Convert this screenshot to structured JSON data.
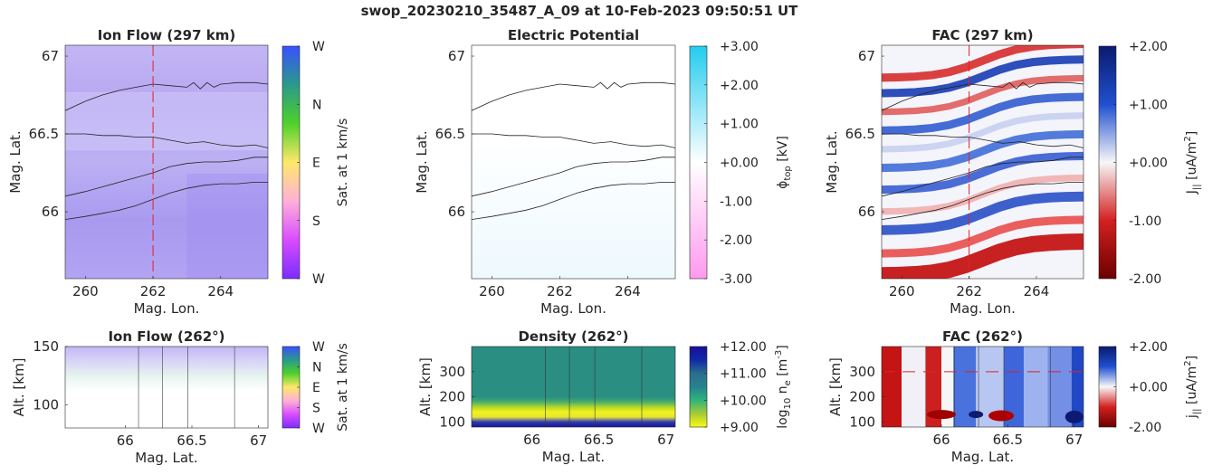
{
  "figure_title": "swop_20230210_35487_A_09 at 10-Feb-2023 09:50:51 UT",
  "chart_data": [
    {
      "id": "ion_flow_map",
      "type": "heatmap",
      "title": "Ion Flow (297 km)",
      "xlabel": "Mag. Lon.",
      "ylabel": "Mag. Lat.",
      "xlim": [
        259.4,
        265.4
      ],
      "ylim": [
        65.57,
        67.07
      ],
      "xticks": [
        260,
        262,
        264
      ],
      "xtick_labels": [
        "260",
        "262",
        "264"
      ],
      "yticks": [
        66,
        66.5,
        67
      ],
      "ytick_labels": [
        "66",
        "66.5",
        "67"
      ],
      "marker_line_x": 262,
      "colorbar": {
        "label": "Sat. at 1 km/s",
        "ticks": [
          "W",
          "N",
          "E",
          "S",
          "W"
        ],
        "colors": [
          "#7a2cff",
          "#d94cff",
          "#ffb0d8",
          "#ffe86a",
          "#4fd12a",
          "#2a9a8a",
          "#3a50ff"
        ]
      },
      "field_color": "#b9a7f2",
      "arcs": [
        {
          "x": [
            259.4,
            260.0,
            260.5,
            261.0,
            261.5,
            262.0,
            262.5,
            263.0,
            263.2,
            263.4,
            263.6,
            263.8,
            264.0,
            264.5,
            265.0,
            265.4
          ],
          "y": [
            66.65,
            66.71,
            66.75,
            66.78,
            66.8,
            66.82,
            66.81,
            66.8,
            66.83,
            66.79,
            66.83,
            66.8,
            66.82,
            66.83,
            66.83,
            66.82
          ]
        },
        {
          "x": [
            259.4,
            260.0,
            260.5,
            261.0,
            261.5,
            262.0,
            262.5,
            263.0,
            263.5,
            264.0,
            264.5,
            265.0,
            265.4
          ],
          "y": [
            66.5,
            66.5,
            66.49,
            66.49,
            66.48,
            66.48,
            66.46,
            66.44,
            66.45,
            66.43,
            66.42,
            66.43,
            66.41
          ]
        },
        {
          "x": [
            259.4,
            260.0,
            260.5,
            261.0,
            261.5,
            262.0,
            262.5,
            263.0,
            263.5,
            264.0,
            264.5,
            265.0,
            265.4
          ],
          "y": [
            66.1,
            66.13,
            66.16,
            66.19,
            66.22,
            66.25,
            66.29,
            66.31,
            66.32,
            66.32,
            66.33,
            66.35,
            66.35
          ]
        },
        {
          "x": [
            259.4,
            260.0,
            260.5,
            261.0,
            261.5,
            262.0,
            262.5,
            263.0,
            263.5,
            264.0,
            264.5,
            265.0,
            265.4
          ],
          "y": [
            65.95,
            65.97,
            65.99,
            66.01,
            66.04,
            66.08,
            66.12,
            66.15,
            66.17,
            66.18,
            66.18,
            66.19,
            66.19
          ]
        }
      ]
    },
    {
      "id": "potential_map",
      "type": "heatmap",
      "title": "Electric Potential",
      "xlabel": "Mag. Lon.",
      "ylabel": "Mag. Lat.",
      "xlim": [
        259.4,
        265.4
      ],
      "ylim": [
        65.57,
        67.07
      ],
      "xticks": [
        260,
        262,
        264
      ],
      "xtick_labels": [
        "260",
        "262",
        "264"
      ],
      "yticks": [
        66,
        66.5,
        67
      ],
      "ytick_labels": [
        "66",
        "66.5",
        "67"
      ],
      "colorbar": {
        "label": "ϕ_top [kV]",
        "label_main": "ϕ",
        "label_sub": "top",
        "label_rest": " [kV]",
        "ticks": [
          "+3.00",
          "+2.00",
          "+1.00",
          "+0.00",
          "-1.00",
          "-2.00",
          "-3.00"
        ],
        "colors": [
          "#ff99ee",
          "#ffffff",
          "#22ccee"
        ]
      },
      "field_color": "#f3fbff"
    },
    {
      "id": "fac_map",
      "type": "heatmap",
      "title": "FAC (297 km)",
      "xlabel": "Mag. Lon.",
      "ylabel": "Mag. Lat.",
      "xlim": [
        259.4,
        265.4
      ],
      "ylim": [
        65.57,
        67.07
      ],
      "xticks": [
        260,
        262,
        264
      ],
      "xtick_labels": [
        "260",
        "262",
        "264"
      ],
      "yticks": [
        66,
        66.5,
        67
      ],
      "ytick_labels": [
        "66",
        "66.5",
        "67"
      ],
      "marker_line_x": 262,
      "colorbar": {
        "label": "J_|| [uA/m^2]",
        "label_main": "J",
        "label_sub": "||",
        "label_rest": " [uA/m",
        "label_sup": "2",
        "label_end": "]",
        "ticks": [
          "+2.00",
          "+1.00",
          "+0.00",
          "-1.00",
          "-2.00"
        ],
        "colors": [
          "#6b0000",
          "#d42020",
          "#f7f7f7",
          "#2050d0",
          "#0a1a6e"
        ]
      }
    },
    {
      "id": "ion_flow_profile",
      "type": "heatmap",
      "title": "Ion Flow (262°)",
      "xlabel": "Mag. Lat.",
      "ylabel": "Alt. [km]",
      "xlim": [
        65.55,
        67.07
      ],
      "ylim": [
        80,
        150
      ],
      "xticks": [
        66,
        66.5,
        67
      ],
      "xtick_labels": [
        "66",
        "66.5",
        "67"
      ],
      "yticks": [
        100,
        150
      ],
      "ytick_labels": [
        "100",
        "150"
      ],
      "arc_lines_x": [
        66.1,
        66.28,
        66.47,
        66.82
      ],
      "colorbar": {
        "label": "Sat. at 1 km/s",
        "ticks": [
          "W",
          "N",
          "E",
          "S",
          "W"
        ],
        "colors": [
          "#7a2cff",
          "#d94cff",
          "#ffb0d8",
          "#ffe86a",
          "#4fd12a",
          "#2a9a8a",
          "#3a50ff"
        ]
      }
    },
    {
      "id": "density_profile",
      "type": "heatmap",
      "title": "Density (262°)",
      "xlabel": "Mag. Lat.",
      "ylabel": "Alt. [km]",
      "xlim": [
        65.55,
        67.07
      ],
      "ylim": [
        80,
        400
      ],
      "xticks": [
        66,
        66.5,
        67
      ],
      "xtick_labels": [
        "66",
        "66.5",
        "67"
      ],
      "yticks": [
        100,
        200,
        300
      ],
      "ytick_labels": [
        "100",
        "200",
        "300"
      ],
      "arc_lines_x": [
        66.1,
        66.28,
        66.47,
        66.82
      ],
      "colorbar": {
        "label": "log_10 n_e [m^-3]",
        "label_main": "log",
        "label_sub": "10",
        "label_rest": " n",
        "label_sub2": "e",
        "label_rest2": " [m",
        "label_sup": "-3",
        "label_end": "]",
        "ticks": [
          "+12.00",
          "+11.00",
          "+10.00",
          "+9.00"
        ],
        "colors": [
          "#f9fb0e",
          "#a7cb36",
          "#2fb47c",
          "#26828e",
          "#2c6e8e",
          "#0e2aa7",
          "#1a0f9a"
        ]
      }
    },
    {
      "id": "fac_profile",
      "type": "heatmap",
      "title": "FAC (262°)",
      "xlabel": "Mag. Lat.",
      "ylabel": "Alt. [km]",
      "xlim": [
        65.55,
        67.07
      ],
      "ylim": [
        80,
        400
      ],
      "xticks": [
        66,
        66.5,
        67
      ],
      "xtick_labels": [
        "66",
        "66.5",
        "67"
      ],
      "yticks": [
        100,
        200,
        300
      ],
      "ytick_labels": [
        "100",
        "200",
        "300"
      ],
      "arc_lines_x": [
        66.1,
        66.28,
        66.47,
        66.82
      ],
      "marker_line_y": 300,
      "colorbar": {
        "label": "j_|| [uA/m^2]",
        "label_main": "j",
        "label_sub": "||",
        "label_rest": " [uA/m",
        "label_sup": "2",
        "label_end": "]",
        "ticks": [
          "+2.00",
          "+0.00",
          "-2.00"
        ],
        "colors": [
          "#6b0000",
          "#d42020",
          "#f7f7f7",
          "#2050d0",
          "#0a1a6e"
        ]
      }
    }
  ]
}
